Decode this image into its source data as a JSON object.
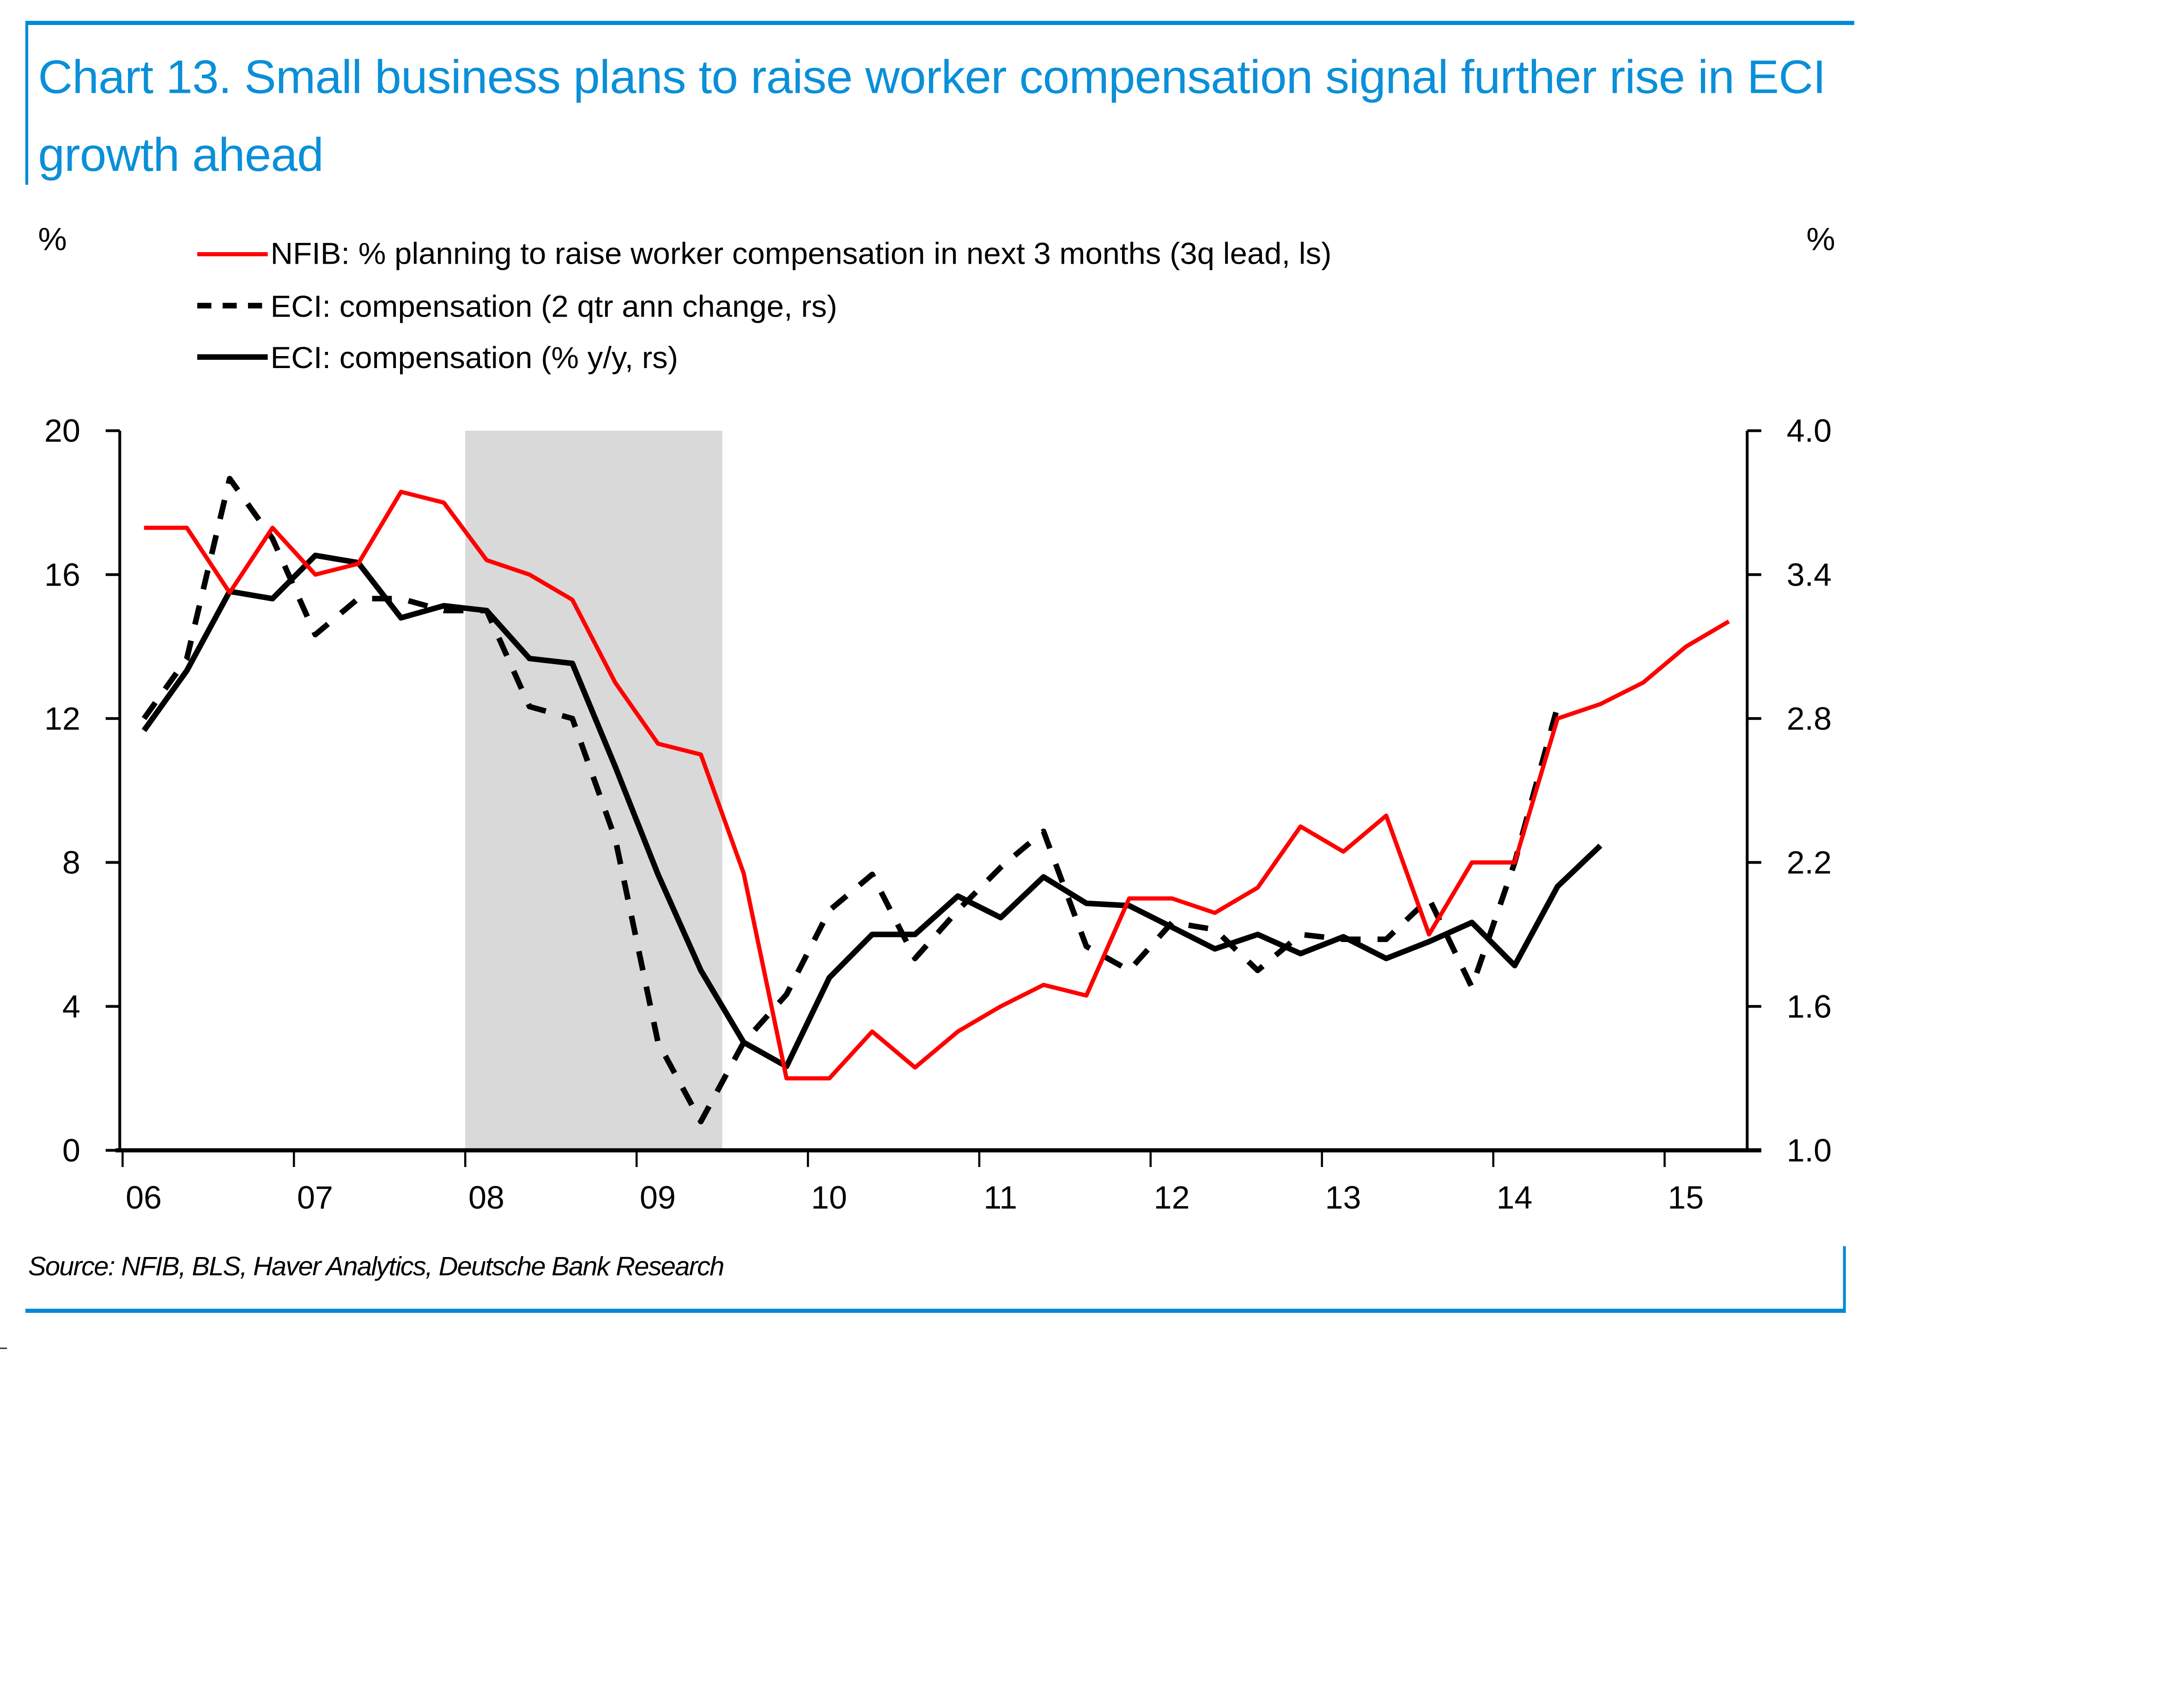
{
  "title": "Chart 13. Small business plans to raise worker compensation signal further rise in ECI growth ahead",
  "source": "Source: NFIB, BLS, Haver Analytics, Deutsche Bank Research",
  "colors": {
    "frame": "#0089d6",
    "title": "#0a8fd8",
    "nfib": "#ff0000",
    "eci": "#000000",
    "recession": "#d9d9d9"
  },
  "chart_data": {
    "type": "line",
    "title": "Chart 13. Small business plans to raise worker compensation signal further rise in ECI growth ahead",
    "xlabel": "",
    "ylabel_left": "%",
    "ylabel_right": "%",
    "x_ticks": [
      "06",
      "07",
      "08",
      "09",
      "10",
      "11",
      "12",
      "13",
      "14",
      "15"
    ],
    "x_range": [
      2006.0,
      2015.9
    ],
    "y_left": {
      "range": [
        0,
        20
      ],
      "ticks": [
        0,
        4,
        8,
        12,
        16,
        20
      ],
      "tick_labels": [
        "0",
        "4",
        "8",
        "12",
        "16",
        "20"
      ]
    },
    "y_right": {
      "range": [
        1.0,
        4.0
      ],
      "ticks": [
        1.0,
        1.6,
        2.2,
        2.8,
        3.4,
        4.0
      ],
      "tick_labels": [
        "1.0",
        "1.6",
        "2.2",
        "2.8",
        "3.4",
        "4.0"
      ]
    },
    "grid": false,
    "legend_position": "top-left",
    "shaded_regions": [
      {
        "label": "recession",
        "x_start": 2008.0,
        "x_end": 2009.5
      }
    ],
    "series": [
      {
        "name": "NFIB: % planning to raise worker compensation in next 3 months (3q lead, ls)",
        "axis": "left",
        "style": "solid",
        "color": "#ff0000",
        "x_start": 2006.125,
        "x_step": 0.25,
        "values": [
          17.3,
          17.3,
          15.5,
          17.3,
          16.0,
          16.3,
          18.3,
          18.0,
          16.4,
          16.0,
          15.3,
          13.0,
          11.3,
          11.0,
          7.7,
          2.0,
          2.0,
          3.3,
          2.3,
          3.3,
          4.0,
          4.6,
          4.3,
          7.0,
          7.0,
          6.6,
          7.3,
          9.0,
          8.3,
          9.3,
          6.0,
          8.0,
          8.0,
          12.0,
          12.4,
          13.0,
          14.0,
          14.7
        ]
      },
      {
        "name": "ECI: compensation (2 qtr ann change, rs)",
        "axis": "right",
        "style": "dashed",
        "color": "#000000",
        "x_start": 2006.125,
        "x_step": 0.25,
        "values": [
          2.8,
          3.05,
          3.8,
          3.55,
          3.15,
          3.3,
          3.3,
          3.25,
          3.25,
          2.85,
          2.8,
          2.3,
          1.45,
          1.12,
          1.45,
          1.65,
          2.0,
          2.15,
          1.8,
          2.0,
          2.18,
          2.33,
          1.85,
          1.75,
          1.95,
          1.92,
          1.75,
          1.9,
          1.88,
          1.88,
          2.05,
          1.68,
          2.2,
          2.85
        ]
      },
      {
        "name": "ECI: compensation (% y/y, rs)",
        "axis": "right",
        "style": "solid",
        "color": "#000000",
        "x_start": 2006.125,
        "x_step": 0.25,
        "values": [
          2.75,
          3.0,
          3.33,
          3.3,
          3.48,
          3.45,
          3.22,
          3.27,
          3.25,
          3.05,
          3.03,
          2.6,
          2.15,
          1.75,
          1.45,
          1.35,
          1.72,
          1.9,
          1.9,
          2.06,
          1.97,
          2.14,
          2.03,
          2.02,
          1.93,
          1.84,
          1.9,
          1.82,
          1.89,
          1.8,
          1.87,
          1.95,
          1.77,
          2.1,
          2.27
        ]
      }
    ]
  }
}
